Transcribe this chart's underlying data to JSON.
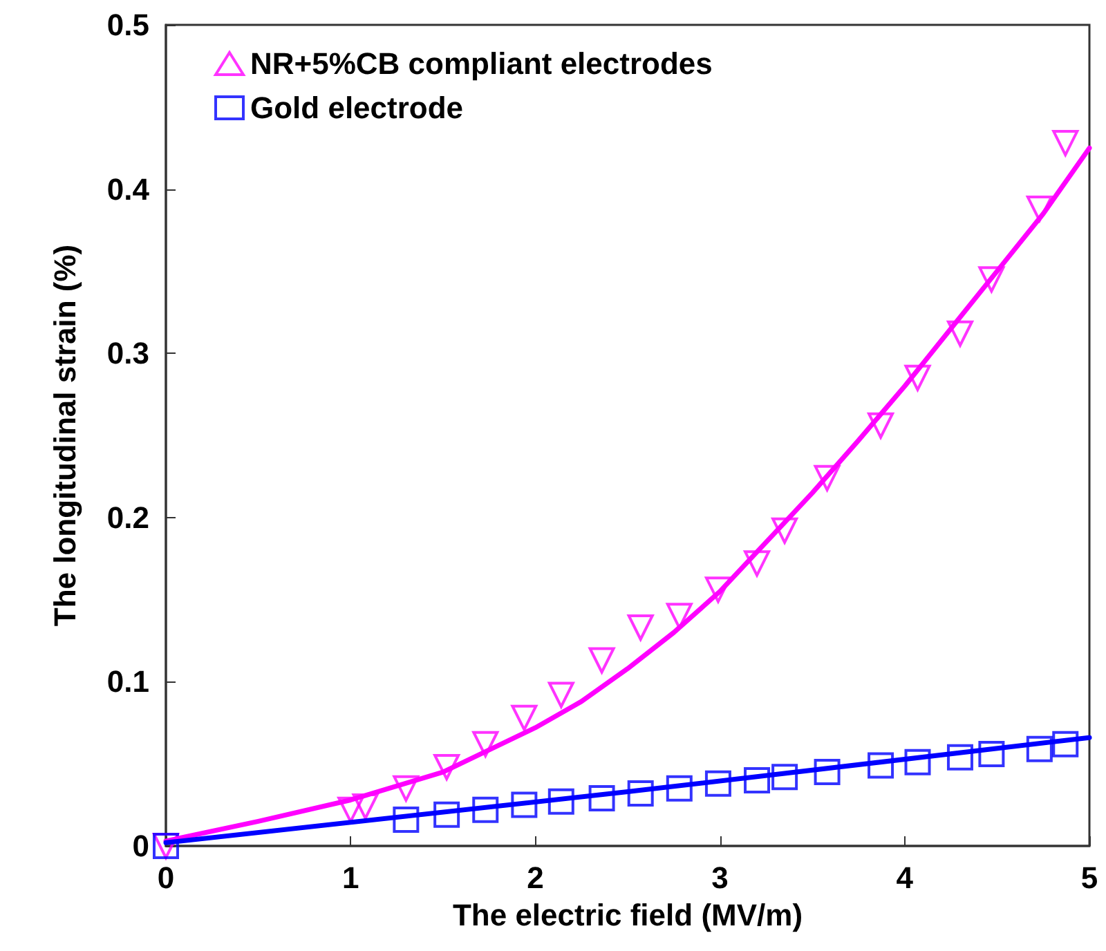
{
  "chart_data": {
    "type": "scatter",
    "xlabel": "The electric field (MV/m)",
    "ylabel": "The longitudinal strain (%)",
    "xlim": [
      0,
      5
    ],
    "xticks": [
      0,
      1,
      2,
      3,
      4,
      5
    ],
    "ylim": [
      0,
      0.5
    ],
    "yticks": [
      0,
      0.1,
      0.2,
      0.3,
      0.4,
      0.5
    ],
    "grid": false,
    "legend": "top left",
    "series": [
      {
        "name": "NR+5%CB compliant electrodes",
        "marker": "triangle",
        "color": "#ff00ff",
        "x": [
          0,
          1.0,
          1.08,
          1.3,
          1.52,
          1.73,
          1.94,
          2.14,
          2.36,
          2.57,
          2.78,
          2.99,
          3.2,
          3.35,
          3.58,
          3.87,
          4.07,
          4.3,
          4.47,
          4.73,
          4.87
        ],
        "values": [
          0,
          0.022,
          0.024,
          0.035,
          0.048,
          0.062,
          0.078,
          0.092,
          0.113,
          0.133,
          0.14,
          0.156,
          0.172,
          0.192,
          0.224,
          0.256,
          0.285,
          0.312,
          0.345,
          0.388,
          0.428
        ]
      },
      {
        "name": "Gold electrode",
        "marker": "square",
        "color": "#0000ff",
        "x": [
          0,
          1.3,
          1.52,
          1.73,
          1.94,
          2.14,
          2.36,
          2.57,
          2.78,
          2.99,
          3.2,
          3.35,
          3.58,
          3.87,
          4.07,
          4.3,
          4.47,
          4.73,
          4.87
        ],
        "values": [
          0,
          0.016,
          0.019,
          0.022,
          0.025,
          0.027,
          0.029,
          0.032,
          0.035,
          0.038,
          0.04,
          0.042,
          0.045,
          0.049,
          0.051,
          0.054,
          0.056,
          0.059,
          0.062
        ]
      },
      {
        "type": "line",
        "marker": "none",
        "line_style": "solid",
        "color": "#ff00ff",
        "x": [
          0,
          0.5,
          1,
          1.5,
          2,
          2.25,
          2.5,
          2.75,
          3,
          3.25,
          3.5,
          3.75,
          4,
          4.25,
          4.5,
          4.75,
          5
        ],
        "values": [
          0.003,
          0.015,
          0.028,
          0.045,
          0.072,
          0.088,
          0.108,
          0.13,
          0.155,
          0.185,
          0.215,
          0.247,
          0.28,
          0.315,
          0.35,
          0.385,
          0.425
        ]
      },
      {
        "type": "line",
        "marker": "none",
        "line_style": "solid",
        "color": "#0000ff",
        "x": [
          0,
          2.5,
          5
        ],
        "values": [
          0.002,
          0.033,
          0.066
        ]
      }
    ]
  }
}
